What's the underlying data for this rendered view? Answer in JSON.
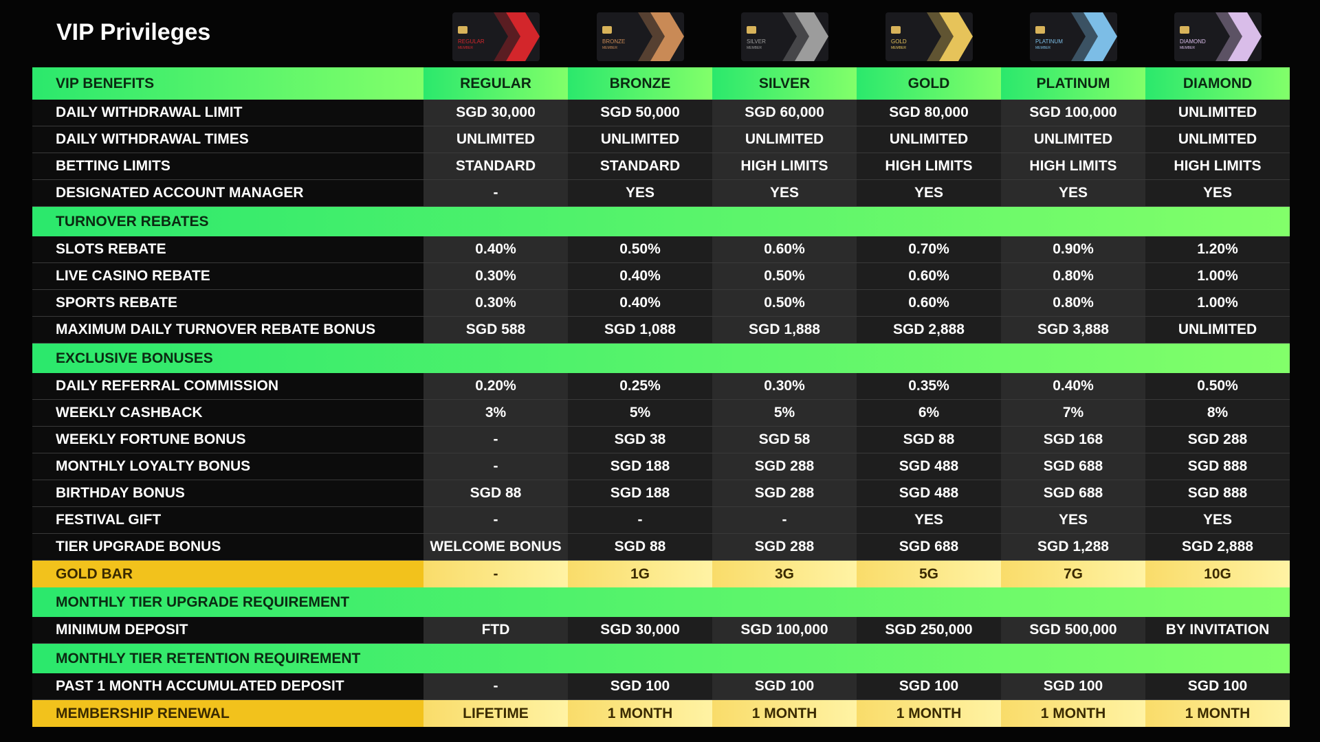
{
  "header": {
    "title": "VIP Privileges"
  },
  "cards": {
    "label": "MEMBER",
    "colors": [
      "#d3262b",
      "#c98a56",
      "#9c9c9c",
      "#e6c35a",
      "#7cbde6",
      "#d9bde9"
    ]
  },
  "table": {
    "columns": [
      "VIP BENEFITS",
      "REGULAR",
      "BRONZE",
      "SILVER",
      "GOLD",
      "PLATINUM",
      "DIAMOND"
    ],
    "rows": [
      {
        "style": "data",
        "cells": [
          "DAILY WITHDRAWAL LIMIT",
          "SGD 30,000",
          "SGD 50,000",
          "SGD 60,000",
          "SGD 80,000",
          "SGD 100,000",
          "UNLIMITED"
        ]
      },
      {
        "style": "data",
        "cells": [
          "DAILY WITHDRAWAL TIMES",
          "UNLIMITED",
          "UNLIMITED",
          "UNLIMITED",
          "UNLIMITED",
          "UNLIMITED",
          "UNLIMITED"
        ]
      },
      {
        "style": "data",
        "cells": [
          "BETTING LIMITS",
          "STANDARD",
          "STANDARD",
          "HIGH LIMITS",
          "HIGH LIMITS",
          "HIGH LIMITS",
          "HIGH LIMITS"
        ]
      },
      {
        "style": "data",
        "cells": [
          "DESIGNATED ACCOUNT MANAGER",
          "-",
          "YES",
          "YES",
          "YES",
          "YES",
          "YES"
        ]
      },
      {
        "style": "section",
        "cells": [
          "TURNOVER REBATES"
        ]
      },
      {
        "style": "data",
        "cells": [
          "SLOTS REBATE",
          "0.40%",
          "0.50%",
          "0.60%",
          "0.70%",
          "0.90%",
          "1.20%"
        ]
      },
      {
        "style": "data",
        "cells": [
          "LIVE CASINO REBATE",
          "0.30%",
          "0.40%",
          "0.50%",
          "0.60%",
          "0.80%",
          "1.00%"
        ]
      },
      {
        "style": "data",
        "cells": [
          "SPORTS REBATE",
          "0.30%",
          "0.40%",
          "0.50%",
          "0.60%",
          "0.80%",
          "1.00%"
        ]
      },
      {
        "style": "data",
        "cells": [
          "MAXIMUM DAILY TURNOVER REBATE BONUS",
          "SGD 588",
          "SGD 1,088",
          "SGD 1,888",
          "SGD 2,888",
          "SGD 3,888",
          "UNLIMITED"
        ]
      },
      {
        "style": "section",
        "cells": [
          "EXCLUSIVE BONUSES"
        ]
      },
      {
        "style": "data",
        "cells": [
          "DAILY REFERRAL COMMISSION",
          "0.20%",
          "0.25%",
          "0.30%",
          "0.35%",
          "0.40%",
          "0.50%"
        ]
      },
      {
        "style": "data",
        "cells": [
          "WEEKLY CASHBACK",
          "3%",
          "5%",
          "5%",
          "6%",
          "7%",
          "8%"
        ]
      },
      {
        "style": "data",
        "cells": [
          "WEEKLY FORTUNE BONUS",
          "-",
          "SGD 38",
          "SGD 58",
          "SGD 88",
          "SGD 168",
          "SGD 288"
        ]
      },
      {
        "style": "data",
        "cells": [
          "MONTHLY LOYALTY BONUS",
          "-",
          "SGD 188",
          "SGD 288",
          "SGD 488",
          "SGD 688",
          "SGD 888"
        ]
      },
      {
        "style": "data",
        "cells": [
          "BIRTHDAY BONUS",
          "SGD 88",
          "SGD 188",
          "SGD 288",
          "SGD 488",
          "SGD 688",
          "SGD 888"
        ]
      },
      {
        "style": "data",
        "cells": [
          "FESTIVAL GIFT",
          "-",
          "-",
          "-",
          "YES",
          "YES",
          "YES"
        ]
      },
      {
        "style": "data",
        "cells": [
          "TIER UPGRADE BONUS",
          "WELCOME BONUS",
          "SGD 88",
          "SGD 288",
          "SGD 688",
          "SGD 1,288",
          "SGD 2,888"
        ]
      },
      {
        "style": "gold",
        "cells": [
          "GOLD BAR",
          "-",
          "1G",
          "3G",
          "5G",
          "7G",
          "10G"
        ]
      },
      {
        "style": "section",
        "cells": [
          "MONTHLY TIER UPGRADE REQUIREMENT"
        ]
      },
      {
        "style": "data",
        "cells": [
          "MINIMUM DEPOSIT",
          "FTD",
          "SGD 30,000",
          "SGD 100,000",
          "SGD 250,000",
          "SGD 500,000",
          "BY INVITATION"
        ]
      },
      {
        "style": "section",
        "cells": [
          "MONTHLY TIER RETENTION REQUIREMENT"
        ]
      },
      {
        "style": "data",
        "cells": [
          "PAST 1 MONTH ACCUMULATED DEPOSIT",
          "-",
          "SGD 100",
          "SGD 100",
          "SGD 100",
          "SGD 100",
          "SGD 100"
        ]
      },
      {
        "style": "gold",
        "cells": [
          "MEMBERSHIP RENEWAL",
          "LIFETIME",
          "1 MONTH",
          "1 MONTH",
          "1 MONTH",
          "1 MONTH",
          "1 MONTH"
        ]
      }
    ]
  }
}
